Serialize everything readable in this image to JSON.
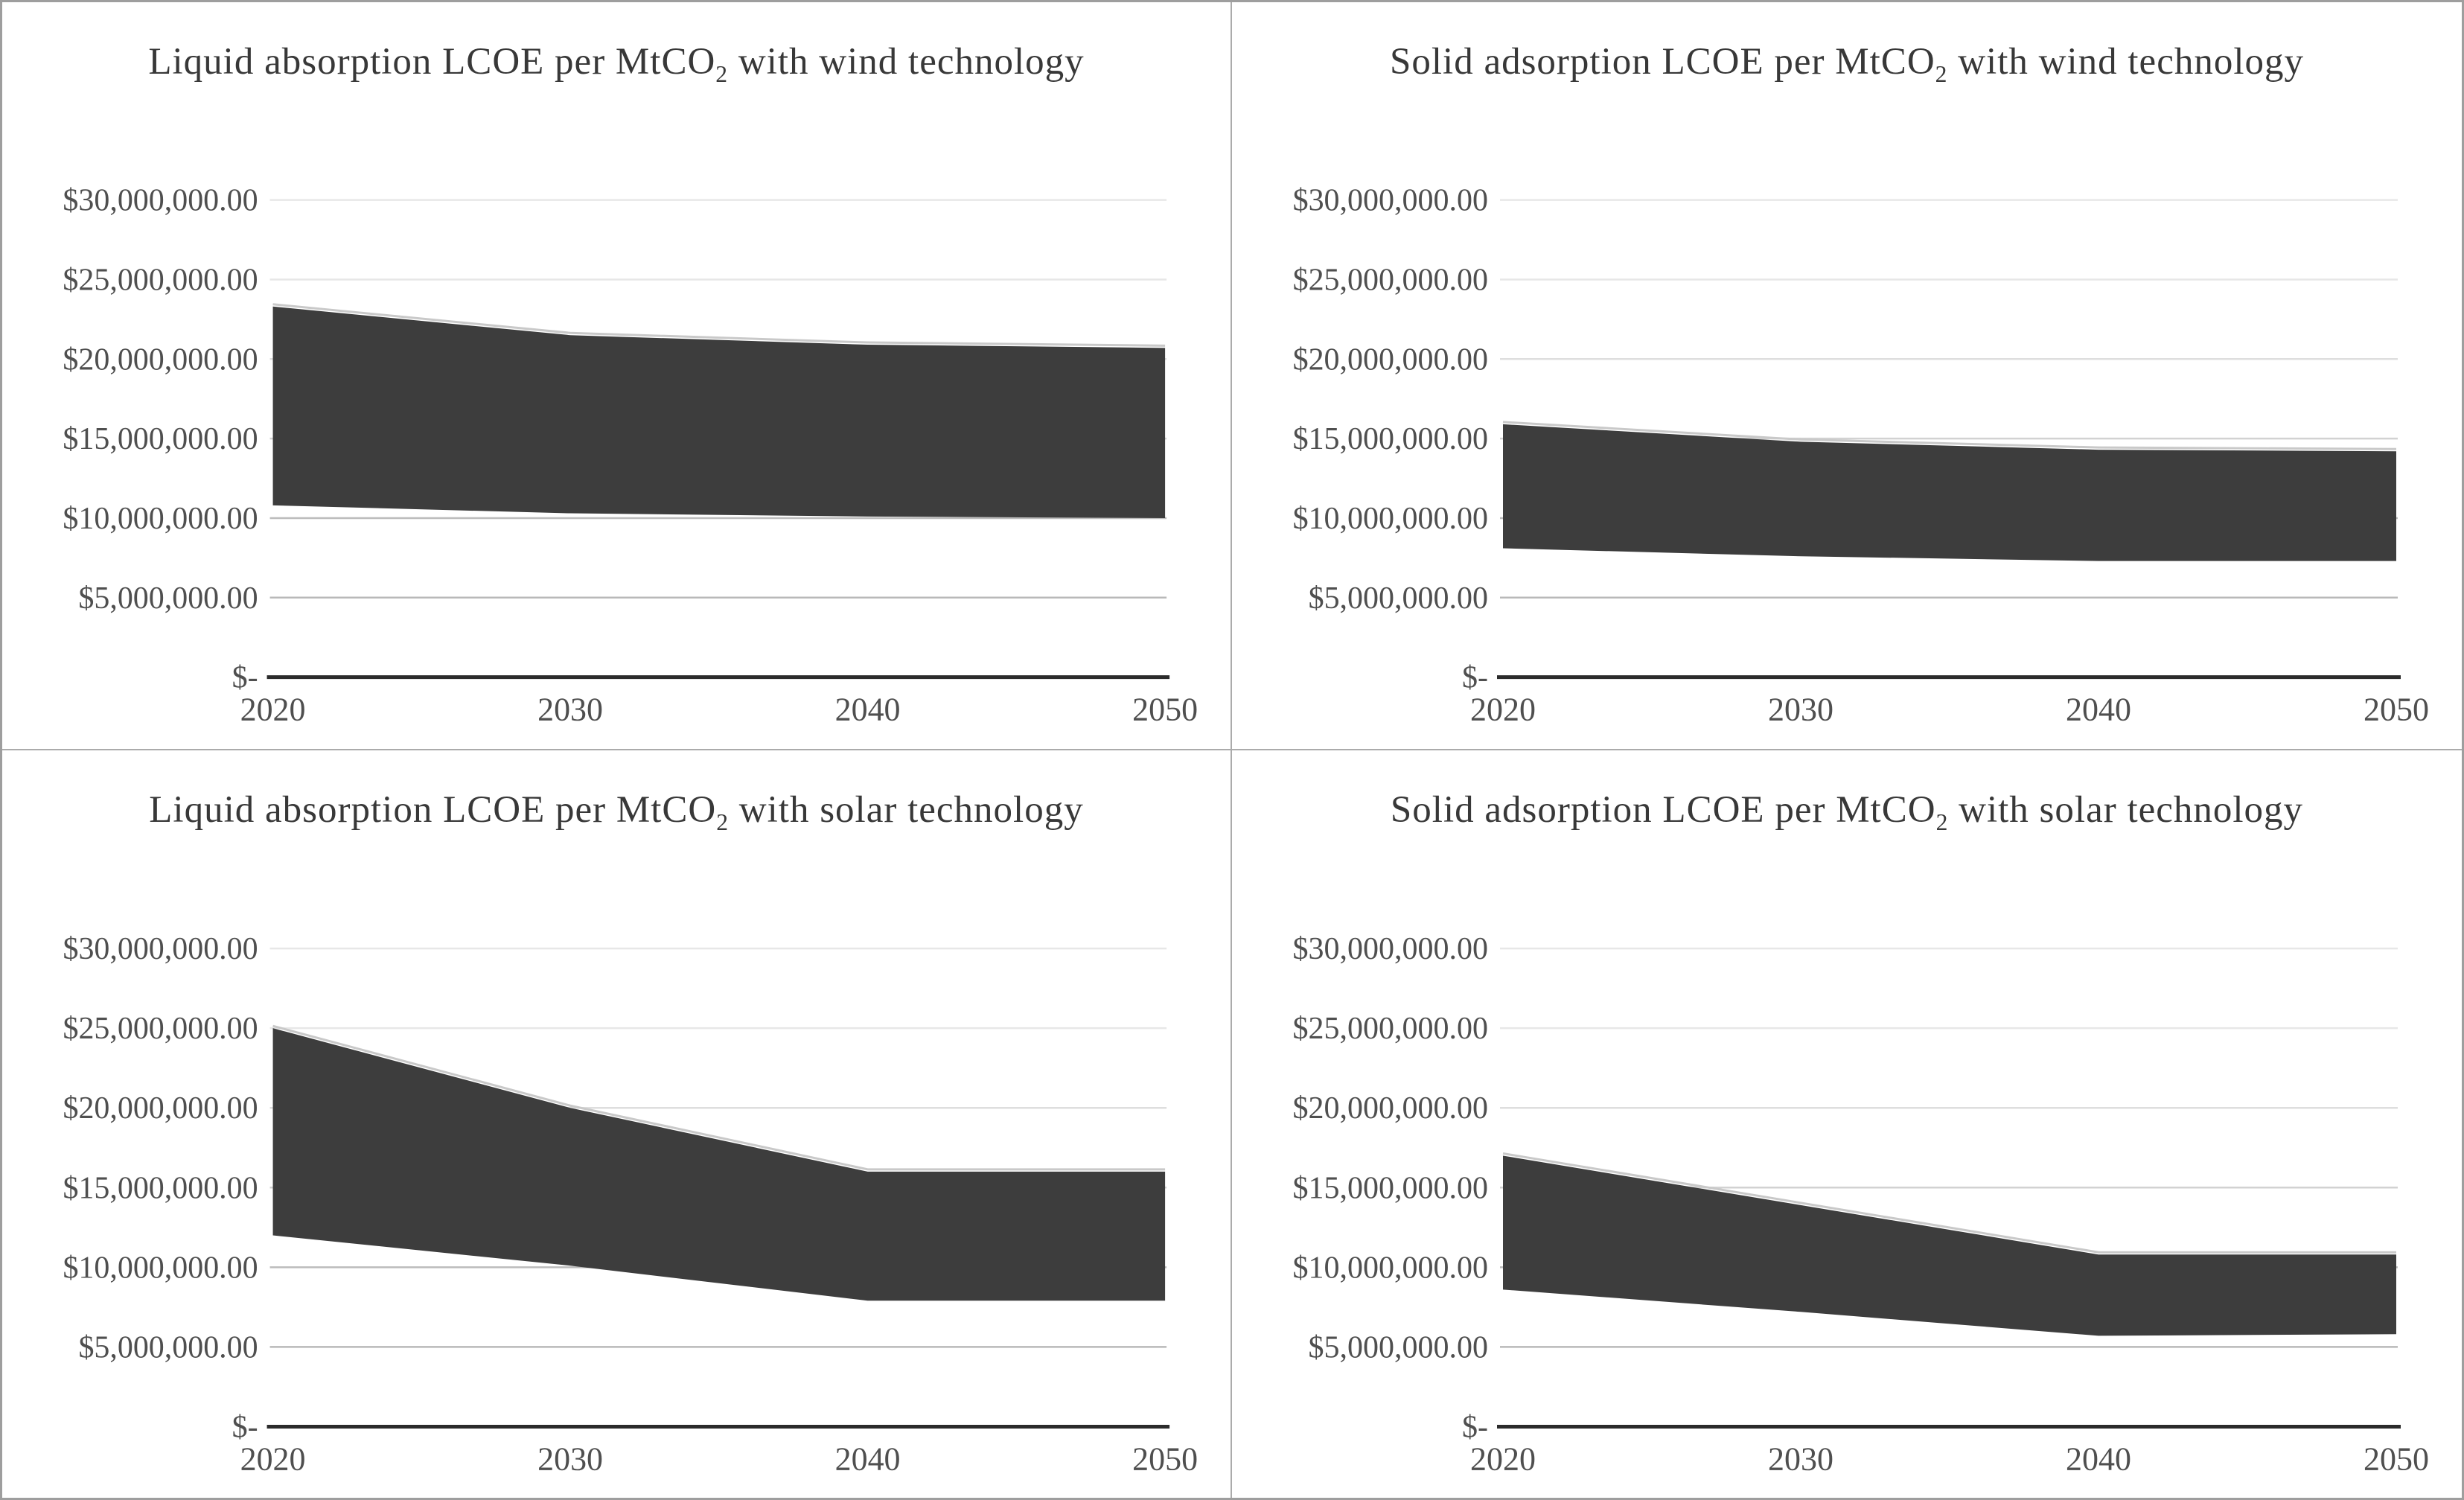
{
  "page": {
    "background": "#ffffff",
    "outer_border_color": "#9e9e9e",
    "panel_divider_color": "#ababab"
  },
  "colors": {
    "band_fill": "#3d3d3d",
    "band_top_edge": "#c9c9c9",
    "axis_line": "#2b2b2b",
    "tick_label": "#4f4f4f",
    "title_text": "#383838",
    "gridline_colors_top_to_bottom": [
      "#e7e7e7",
      "#e7e7e7",
      "#dedede",
      "#d2d2d2",
      "#bcbcbc",
      "#b9b9b9"
    ]
  },
  "y_axis": {
    "tick_labels": [
      "$30,000,000.00",
      "$25,000,000.00",
      "$20,000,000.00",
      "$15,000,000.00",
      "$10,000,000.00",
      "$5,000,000.00",
      "$-"
    ],
    "tick_values": [
      30000000,
      25000000,
      20000000,
      15000000,
      10000000,
      5000000,
      0
    ],
    "range": [
      0,
      30000000
    ],
    "grid": "on"
  },
  "x_axis": {
    "tick_labels": [
      "2020",
      "2030",
      "2040",
      "2050"
    ],
    "tick_values": [
      2020,
      2030,
      2040,
      2050
    ]
  },
  "chart_data": [
    {
      "type": "area",
      "position": "top-left",
      "title": "Liquid absorption LCOE per MtCO2 with wind technology",
      "title_pre": "Liquid absorption LCOE per MtCO",
      "title_sub": "2",
      "title_post": " with wind technology",
      "x": [
        2020,
        2030,
        2040,
        2050
      ],
      "series": [
        {
          "name": "high",
          "values": [
            23300000,
            21500000,
            20900000,
            20700000
          ]
        },
        {
          "name": "low",
          "values": [
            10800000,
            10300000,
            10100000,
            10000000
          ]
        }
      ],
      "band_between_series": true,
      "ylim": [
        0,
        30000000
      ],
      "legend": "none"
    },
    {
      "type": "area",
      "position": "top-right",
      "title": "Solid adsorption LCOE per MtCO2 with wind technology",
      "title_pre": "Solid adsorption LCOE per MtCO",
      "title_sub": "2",
      "title_post": " with wind technology",
      "x": [
        2020,
        2030,
        2040,
        2050
      ],
      "series": [
        {
          "name": "high",
          "values": [
            15900000,
            14800000,
            14300000,
            14200000
          ]
        },
        {
          "name": "low",
          "values": [
            8100000,
            7600000,
            7300000,
            7300000
          ]
        }
      ],
      "band_between_series": true,
      "ylim": [
        0,
        30000000
      ],
      "legend": "none"
    },
    {
      "type": "area",
      "position": "bottom-left",
      "title": "Liquid absorption LCOE per MtCO2 with solar technology",
      "title_pre": "Liquid absorption LCOE per MtCO",
      "title_sub": "2",
      "title_post": " with solar technology",
      "x": [
        2020,
        2030,
        2040,
        2050
      ],
      "series": [
        {
          "name": "high",
          "values": [
            25000000,
            20000000,
            16000000,
            16000000
          ]
        },
        {
          "name": "low",
          "values": [
            12000000,
            10100000,
            7900000,
            7900000
          ]
        }
      ],
      "band_between_series": true,
      "ylim": [
        0,
        30000000
      ],
      "legend": "none"
    },
    {
      "type": "area",
      "position": "bottom-right",
      "title": "Solid adsorption LCOE per MtCO2 with solar technology",
      "title_pre": "Solid adsorption LCOE per MtCO",
      "title_sub": "2",
      "title_post": " with solar technology",
      "x": [
        2020,
        2030,
        2040,
        2050
      ],
      "series": [
        {
          "name": "high",
          "values": [
            17000000,
            13900000,
            10800000,
            10800000
          ]
        },
        {
          "name": "low",
          "values": [
            8600000,
            7200000,
            5700000,
            5800000
          ]
        }
      ],
      "band_between_series": true,
      "ylim": [
        0,
        30000000
      ],
      "legend": "none"
    }
  ]
}
